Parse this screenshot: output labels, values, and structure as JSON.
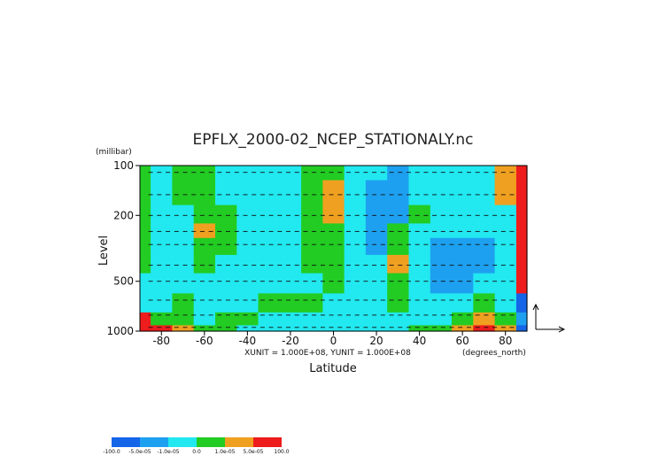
{
  "chart_data": {
    "type": "heatmap",
    "title": "EPFLX_2000-02_NCEP_STATIONALY.nc",
    "xlabel": "Latitude",
    "ylabel": "Level",
    "x_unit_label": "(degrees_north)",
    "y_unit_label": "(millibar)",
    "xlim": [
      -90,
      90
    ],
    "ylim": [
      1000,
      100
    ],
    "y_scale": "log",
    "x_ticks": [
      "-80",
      "-60",
      "-40",
      "-20",
      "0",
      "20",
      "40",
      "60",
      "80"
    ],
    "x_tick_values": [
      -80,
      -60,
      -40,
      -20,
      0,
      20,
      40,
      60,
      80
    ],
    "y_ticks": [
      "100",
      "200",
      "500",
      "1000"
    ],
    "y_tick_values": [
      100,
      200,
      500,
      1000
    ],
    "vector_scale_text": "XUNIT = 1.000E+08, YUNIT = 1.000E+08",
    "colorbar": {
      "labels": [
        "-100.0",
        "-5.0e-05",
        "-1.0e-05",
        "0.0",
        "1.0e-05",
        "5.0e-05",
        "100.0"
      ],
      "colors": [
        "#1565e8",
        "#1ea0f0",
        "#22e8f0",
        "#22cc22",
        "#f0a020",
        "#ee1c1c"
      ]
    },
    "field": {
      "lat": [
        -90,
        -80,
        -70,
        -60,
        -50,
        -40,
        -30,
        -20,
        -10,
        0,
        10,
        20,
        30,
        40,
        50,
        60,
        70,
        80,
        90
      ],
      "levels": [
        100,
        150,
        200,
        250,
        300,
        400,
        500,
        700,
        850,
        1000
      ],
      "values": [
        [
          3,
          2,
          3,
          3,
          2,
          2,
          2,
          2,
          3,
          3,
          2,
          2,
          1,
          2,
          2,
          2,
          2,
          4,
          5
        ],
        [
          3,
          2,
          3,
          3,
          2,
          2,
          2,
          2,
          3,
          4,
          2,
          1,
          1,
          2,
          2,
          2,
          2,
          4,
          5
        ],
        [
          3,
          2,
          2,
          3,
          3,
          2,
          2,
          2,
          3,
          4,
          2,
          1,
          1,
          3,
          2,
          2,
          2,
          2,
          5
        ],
        [
          3,
          2,
          2,
          4,
          3,
          2,
          2,
          2,
          3,
          3,
          2,
          1,
          3,
          2,
          2,
          2,
          2,
          2,
          5
        ],
        [
          3,
          2,
          2,
          3,
          3,
          2,
          2,
          2,
          3,
          3,
          2,
          1,
          3,
          2,
          1,
          1,
          1,
          2,
          5
        ],
        [
          3,
          2,
          2,
          3,
          2,
          2,
          2,
          2,
          3,
          3,
          2,
          2,
          4,
          2,
          1,
          1,
          1,
          2,
          5
        ],
        [
          2,
          2,
          2,
          2,
          2,
          2,
          2,
          2,
          2,
          3,
          2,
          2,
          3,
          2,
          1,
          1,
          2,
          2,
          5
        ],
        [
          2,
          2,
          3,
          2,
          2,
          2,
          3,
          3,
          3,
          2,
          2,
          2,
          3,
          2,
          2,
          2,
          3,
          2,
          0
        ],
        [
          5,
          3,
          3,
          2,
          3,
          3,
          2,
          2,
          2,
          2,
          2,
          2,
          2,
          2,
          2,
          3,
          4,
          3,
          1
        ],
        [
          5,
          5,
          4,
          3,
          3,
          2,
          2,
          2,
          2,
          2,
          2,
          2,
          2,
          3,
          3,
          4,
          5,
          4,
          0
        ]
      ]
    },
    "vector_rows": [
      110,
      150,
      200,
      250,
      300,
      400,
      500,
      650,
      800,
      950
    ]
  }
}
